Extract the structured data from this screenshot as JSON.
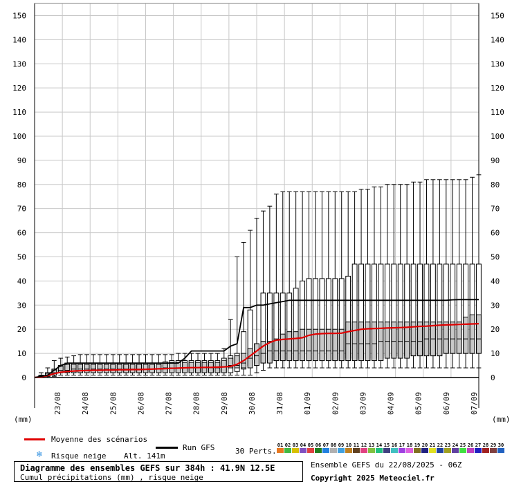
{
  "chart_data": {
    "type": "boxplot",
    "ylim": [
      0,
      155
    ],
    "yticks": [
      0,
      10,
      20,
      30,
      40,
      50,
      60,
      70,
      80,
      90,
      100,
      110,
      120,
      130,
      140,
      150
    ],
    "y_unit_label_left": "(mm)",
    "y_unit_label_right": "(mm)",
    "x_labels": [
      "23/08",
      "24/08",
      "25/08",
      "26/08",
      "27/08",
      "28/08",
      "29/08",
      "30/08",
      "31/08",
      "01/09",
      "02/09",
      "03/09",
      "04/09",
      "05/09",
      "06/09",
      "07/09"
    ],
    "boxes": [
      {
        "x": 0,
        "min": 0,
        "q1": 0,
        "med": 0,
        "q3": 0,
        "max": 0
      },
      {
        "x": 1,
        "min": 0,
        "q1": 0.2,
        "med": 0.4,
        "q3": 1,
        "max": 2
      },
      {
        "x": 2,
        "min": 0,
        "q1": 0.5,
        "med": 1,
        "q3": 2,
        "max": 4
      },
      {
        "x": 3,
        "min": 0.5,
        "q1": 1,
        "med": 2,
        "q3": 3.5,
        "max": 7
      },
      {
        "x": 4,
        "min": 1,
        "q1": 2,
        "med": 3,
        "q3": 5,
        "max": 8
      },
      {
        "x": 5,
        "min": 1,
        "q1": 2,
        "med": 3,
        "q3": 6,
        "max": 8.5
      },
      {
        "x": 6,
        "min": 1,
        "q1": 2,
        "med": 3.5,
        "q3": 6,
        "max": 9
      },
      {
        "x": 7,
        "min": 1,
        "q1": 2,
        "med": 3.5,
        "q3": 6,
        "max": 9.5
      },
      {
        "x": 8,
        "min": 1,
        "q1": 2,
        "med": 3.5,
        "q3": 6,
        "max": 9.5
      },
      {
        "x": 9,
        "min": 1,
        "q1": 2,
        "med": 3.5,
        "q3": 6,
        "max": 9.5
      },
      {
        "x": 10,
        "min": 1,
        "q1": 2,
        "med": 3.5,
        "q3": 6,
        "max": 9.5
      },
      {
        "x": 11,
        "min": 1,
        "q1": 2,
        "med": 3.5,
        "q3": 6,
        "max": 9.5
      },
      {
        "x": 12,
        "min": 1,
        "q1": 2,
        "med": 3.5,
        "q3": 6,
        "max": 9.5
      },
      {
        "x": 13,
        "min": 1,
        "q1": 2,
        "med": 3.5,
        "q3": 6,
        "max": 9.5
      },
      {
        "x": 14,
        "min": 1,
        "q1": 2,
        "med": 3.5,
        "q3": 6,
        "max": 9.5
      },
      {
        "x": 15,
        "min": 1,
        "q1": 2,
        "med": 3.5,
        "q3": 6,
        "max": 9.5
      },
      {
        "x": 16,
        "min": 1,
        "q1": 2,
        "med": 3.5,
        "q3": 6,
        "max": 9.5
      },
      {
        "x": 17,
        "min": 1,
        "q1": 2,
        "med": 3.5,
        "q3": 6,
        "max": 9.5
      },
      {
        "x": 18,
        "min": 1,
        "q1": 2,
        "med": 3.5,
        "q3": 6,
        "max": 9.5
      },
      {
        "x": 19,
        "min": 1,
        "q1": 2,
        "med": 3.5,
        "q3": 6,
        "max": 9.5
      },
      {
        "x": 20,
        "min": 1,
        "q1": 2,
        "med": 4,
        "q3": 6.5,
        "max": 9.5
      },
      {
        "x": 21,
        "min": 1,
        "q1": 2,
        "med": 4,
        "q3": 7,
        "max": 9.5
      },
      {
        "x": 22,
        "min": 1,
        "q1": 2,
        "med": 4,
        "q3": 7,
        "max": 10
      },
      {
        "x": 23,
        "min": 1,
        "q1": 2,
        "med": 4,
        "q3": 7,
        "max": 10
      },
      {
        "x": 24,
        "min": 1,
        "q1": 2,
        "med": 4,
        "q3": 7,
        "max": 10
      },
      {
        "x": 25,
        "min": 1,
        "q1": 2,
        "med": 4,
        "q3": 7,
        "max": 10
      },
      {
        "x": 26,
        "min": 1,
        "q1": 2,
        "med": 4,
        "q3": 7,
        "max": 10
      },
      {
        "x": 27,
        "min": 1,
        "q1": 2,
        "med": 4,
        "q3": 7,
        "max": 10
      },
      {
        "x": 28,
        "min": 1,
        "q1": 2,
        "med": 4,
        "q3": 7,
        "max": 10
      },
      {
        "x": 29,
        "min": 1,
        "q1": 2,
        "med": 4.5,
        "q3": 8,
        "max": 12
      },
      {
        "x": 30,
        "min": 1,
        "q1": 2,
        "med": 5,
        "q3": 9,
        "max": 24
      },
      {
        "x": 31,
        "min": 1,
        "q1": 2.5,
        "med": 5,
        "q3": 10,
        "max": 50
      },
      {
        "x": 32,
        "min": 1,
        "q1": 3.5,
        "med": 6,
        "q3": 19,
        "max": 56
      },
      {
        "x": 33,
        "min": 1,
        "q1": 5,
        "med": 8,
        "q3": 28,
        "max": 61
      },
      {
        "x": 34,
        "min": 2,
        "q1": 6,
        "med": 9,
        "q3": 14,
        "max": 66
      },
      {
        "x": 35,
        "min": 3,
        "q1": 6,
        "med": 10,
        "q3": 35,
        "max": 69
      },
      {
        "x": 36,
        "min": 4,
        "q1": 7,
        "med": 11,
        "q3": 35,
        "max": 71
      },
      {
        "x": 37,
        "min": 4,
        "q1": 7,
        "med": 11,
        "q3": 35,
        "max": 76
      },
      {
        "x": 38,
        "min": 4,
        "q1": 7,
        "med": 11,
        "q3": 35,
        "max": 77
      },
      {
        "x": 39,
        "min": 4,
        "q1": 7,
        "med": 11,
        "q3": 35,
        "max": 77
      },
      {
        "x": 40,
        "min": 4,
        "q1": 7,
        "med": 11,
        "q3": 37,
        "max": 77
      },
      {
        "x": 41,
        "min": 4,
        "q1": 7,
        "med": 11,
        "q3": 40,
        "max": 77
      },
      {
        "x": 42,
        "min": 4,
        "q1": 7,
        "med": 11,
        "q3": 41,
        "max": 77
      },
      {
        "x": 43,
        "min": 4,
        "q1": 7,
        "med": 11,
        "q3": 41,
        "max": 77
      },
      {
        "x": 44,
        "min": 4,
        "q1": 7,
        "med": 11,
        "q3": 41,
        "max": 77
      },
      {
        "x": 45,
        "min": 4,
        "q1": 7,
        "med": 11,
        "q3": 41,
        "max": 77
      },
      {
        "x": 46,
        "min": 4,
        "q1": 7,
        "med": 11,
        "q3": 41,
        "max": 77
      },
      {
        "x": 47,
        "min": 4,
        "q1": 7,
        "med": 11,
        "q3": 41,
        "max": 77
      },
      {
        "x": 48,
        "min": 4,
        "q1": 8,
        "med": 14,
        "q3": 42,
        "max": 77
      },
      {
        "x": 49,
        "min": 4,
        "q1": 8,
        "med": 14,
        "q3": 47,
        "max": 77
      },
      {
        "x": 50,
        "min": 4,
        "q1": 8,
        "med": 14,
        "q3": 47,
        "max": 78
      },
      {
        "x": 51,
        "min": 4,
        "q1": 8,
        "med": 14,
        "q3": 47,
        "max": 78
      },
      {
        "x": 52,
        "min": 4,
        "q1": 8,
        "med": 14,
        "q3": 47,
        "max": 79
      },
      {
        "x": 53,
        "min": 4,
        "q1": 8,
        "med": 15,
        "q3": 47,
        "max": 79
      },
      {
        "x": 54,
        "min": 4,
        "q1": 9,
        "med": 15,
        "q3": 47,
        "max": 80
      },
      {
        "x": 55,
        "min": 4,
        "q1": 9,
        "med": 15,
        "q3": 47,
        "max": 80
      },
      {
        "x": 56,
        "min": 4,
        "q1": 9,
        "med": 15,
        "q3": 47,
        "max": 80
      },
      {
        "x": 57,
        "min": 4,
        "q1": 9,
        "med": 15,
        "q3": 47,
        "max": 80
      },
      {
        "x": 58,
        "min": 4,
        "q1": 9,
        "med": 15,
        "q3": 47,
        "max": 81
      },
      {
        "x": 59,
        "min": 4,
        "q1": 9,
        "med": 15,
        "q3": 47,
        "max": 81
      },
      {
        "x": 60,
        "min": 4,
        "q1": 9,
        "med": 16,
        "q3": 47,
        "max": 82
      },
      {
        "x": 61,
        "min": 4,
        "q1": 9,
        "med": 16,
        "q3": 47,
        "max": 82
      },
      {
        "x": 62,
        "min": 4,
        "q1": 9,
        "med": 16,
        "q3": 47,
        "max": 82
      },
      {
        "x": 63,
        "min": 4,
        "q1": 10,
        "med": 16,
        "q3": 47,
        "max": 82
      },
      {
        "x": 64,
        "min": 4,
        "q1": 10,
        "med": 16,
        "q3": 47,
        "max": 82
      },
      {
        "x": 65,
        "min": 4,
        "q1": 10,
        "med": 16,
        "q3": 47,
        "max": 82
      },
      {
        "x": 66,
        "min": 4,
        "q1": 10,
        "med": 16,
        "q3": 47,
        "max": 82
      },
      {
        "x": 67,
        "min": 4,
        "q1": 10,
        "med": 16,
        "q3": 47,
        "max": 83
      },
      {
        "x": 68,
        "min": 4,
        "q1": 10,
        "med": 16,
        "q3": 47,
        "max": 84
      }
    ],
    "box_iqr_note": "",
    "boxes_inner": [
      {
        "x": 30,
        "lo": 4,
        "hi": 8
      },
      {
        "x": 31,
        "lo": 4,
        "hi": 9
      },
      {
        "x": 32,
        "lo": 4,
        "hi": 10
      },
      {
        "x": 33,
        "lo": 4,
        "hi": 12
      },
      {
        "x": 34,
        "lo": 5,
        "hi": 14
      },
      {
        "x": 35,
        "lo": 6,
        "hi": 15
      },
      {
        "x": 36,
        "lo": 6,
        "hi": 15
      },
      {
        "x": 37,
        "lo": 7,
        "hi": 16
      },
      {
        "x": 38,
        "lo": 7,
        "hi": 18
      },
      {
        "x": 39,
        "lo": 7,
        "hi": 19
      },
      {
        "x": 40,
        "lo": 7,
        "hi": 19
      },
      {
        "x": 41,
        "lo": 7,
        "hi": 20
      },
      {
        "x": 42,
        "lo": 7,
        "hi": 20
      },
      {
        "x": 43,
        "lo": 7,
        "hi": 20
      },
      {
        "x": 44,
        "lo": 7,
        "hi": 20
      },
      {
        "x": 45,
        "lo": 7,
        "hi": 20
      },
      {
        "x": 46,
        "lo": 7,
        "hi": 20
      },
      {
        "x": 47,
        "lo": 7,
        "hi": 20
      },
      {
        "x": 48,
        "lo": 7,
        "hi": 23
      },
      {
        "x": 49,
        "lo": 7,
        "hi": 23
      },
      {
        "x": 50,
        "lo": 7,
        "hi": 23
      },
      {
        "x": 51,
        "lo": 7,
        "hi": 23
      },
      {
        "x": 52,
        "lo": 7,
        "hi": 23
      },
      {
        "x": 53,
        "lo": 7,
        "hi": 23
      },
      {
        "x": 54,
        "lo": 8,
        "hi": 23
      },
      {
        "x": 55,
        "lo": 8,
        "hi": 23
      },
      {
        "x": 56,
        "lo": 8,
        "hi": 23
      },
      {
        "x": 57,
        "lo": 8,
        "hi": 23
      },
      {
        "x": 58,
        "lo": 9,
        "hi": 23
      },
      {
        "x": 59,
        "lo": 9,
        "hi": 23
      },
      {
        "x": 60,
        "lo": 9,
        "hi": 23
      },
      {
        "x": 61,
        "lo": 9,
        "hi": 23
      },
      {
        "x": 62,
        "lo": 9,
        "hi": 23
      },
      {
        "x": 63,
        "lo": 10,
        "hi": 23
      },
      {
        "x": 64,
        "lo": 10,
        "hi": 23
      },
      {
        "x": 65,
        "lo": 10,
        "hi": 23
      },
      {
        "x": 66,
        "lo": 10,
        "hi": 25
      },
      {
        "x": 67,
        "lo": 10,
        "hi": 26
      },
      {
        "x": 68,
        "lo": 10,
        "hi": 26
      }
    ],
    "series": [
      {
        "name": "Moyenne des scénarios",
        "color": "#e00000",
        "values": [
          0,
          0.3,
          0.8,
          1.6,
          2.2,
          2.5,
          2.7,
          2.8,
          2.9,
          3.0,
          3.0,
          3.1,
          3.1,
          3.2,
          3.2,
          3.3,
          3.3,
          3.4,
          3.5,
          3.6,
          3.7,
          3.8,
          3.9,
          4.0,
          4.1,
          4.1,
          4.2,
          4.2,
          4.3,
          4.4,
          4.6,
          5.5,
          7.0,
          9.0,
          11.0,
          13.0,
          14.5,
          15.5,
          15.8,
          16.0,
          16.2,
          16.5,
          17.5,
          18.0,
          18.2,
          18.3,
          18.3,
          18.4,
          19.0,
          19.5,
          20.0,
          20.2,
          20.3,
          20.4,
          20.5,
          20.6,
          20.7,
          20.8,
          21.0,
          21.2,
          21.3,
          21.5,
          21.7,
          21.8,
          21.9,
          22.0,
          22.1,
          22.2,
          22.3
        ]
      },
      {
        "name": "Run GFS",
        "color": "#000000",
        "values": [
          0,
          0.5,
          1,
          3,
          5,
          6,
          6,
          6,
          6,
          6,
          6,
          6,
          6,
          6,
          6,
          6,
          6,
          6,
          6,
          6,
          6,
          6,
          6,
          8,
          11,
          11,
          11,
          11,
          11,
          11,
          13,
          14,
          29,
          29,
          30,
          30,
          30.5,
          31,
          31.5,
          32,
          32,
          32,
          32,
          32,
          32,
          32,
          32,
          32,
          32,
          32,
          32,
          32,
          32,
          32,
          32,
          32,
          32,
          32,
          32,
          32,
          32,
          32,
          32,
          32,
          32.2,
          32.3,
          32.3,
          32.3,
          32.3
        ]
      }
    ]
  },
  "legend": {
    "mean_label": "Moyenne des scénarios",
    "gfs_label": "Run GFS",
    "snow_label": "Risque neige",
    "altitude": "Alt. 141m",
    "perts_label": "30 Perts.",
    "mean_color": "#e00000",
    "gfs_color": "#000000",
    "snow_icon": "snowflake-icon"
  },
  "perturbations": {
    "numbers": [
      "01",
      "02",
      "03",
      "04",
      "05",
      "06",
      "07",
      "08",
      "09",
      "10",
      "11",
      "12",
      "13",
      "14",
      "15",
      "16",
      "17",
      "18",
      "19",
      "20",
      "21",
      "22",
      "23",
      "24",
      "25",
      "26",
      "27",
      "28",
      "29",
      "30"
    ],
    "colors": [
      "#e87820",
      "#40b840",
      "#d8c000",
      "#8050c0",
      "#e04040",
      "#208020",
      "#2080e0",
      "#b0b0b0",
      "#40a0e0",
      "#c08020",
      "#604020",
      "#e04080",
      "#80c040",
      "#20c080",
      "#404080",
      "#40c0c0",
      "#a040e0",
      "#e060e0",
      "#807020",
      "#202080",
      "#e0e020",
      "#2040a0",
      "#a0a020",
      "#6040a0",
      "#40e040",
      "#c040c0",
      "#2020c0",
      "#a02020",
      "#804040",
      "#2060c0"
    ]
  },
  "title": {
    "main": "Diagramme des ensembles GEFS sur 384h : 41.9N 12.5E",
    "sub": "Cumul précipitations (mm) , risque neige"
  },
  "footer": {
    "run": "Ensemble GEFS du 22/08/2025 - 06Z",
    "copyright": "Copyright 2025 Meteociel.fr"
  }
}
